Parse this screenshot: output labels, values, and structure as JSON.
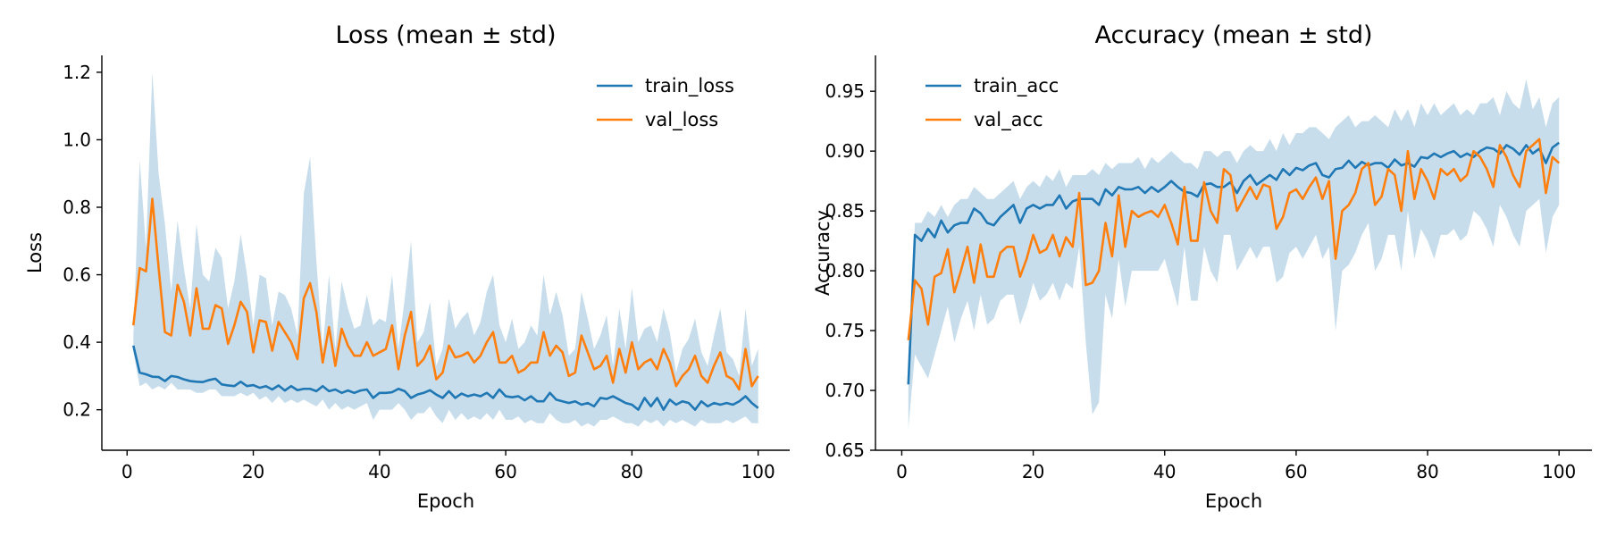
{
  "chart_data": [
    {
      "type": "line",
      "title": "Loss (mean ± std)",
      "xlabel": "Epoch",
      "ylabel": "Loss",
      "xlim": [
        -4,
        105
      ],
      "ylim": [
        0.08,
        1.25
      ],
      "xticks": [
        0,
        20,
        40,
        60,
        80,
        100
      ],
      "yticks": [
        0.2,
        0.4,
        0.6,
        0.8,
        1.0,
        1.2
      ],
      "ytick_labels": [
        "0.2",
        "0.4",
        "0.6",
        "0.8",
        "1.0",
        "1.2"
      ],
      "grid": false,
      "legend": "top-right",
      "band_color": "#1f77b4",
      "x": [
        1,
        2,
        3,
        4,
        5,
        6,
        7,
        8,
        9,
        10,
        11,
        12,
        13,
        14,
        15,
        16,
        17,
        18,
        19,
        20,
        21,
        22,
        23,
        24,
        25,
        26,
        27,
        28,
        29,
        30,
        31,
        32,
        33,
        34,
        35,
        36,
        37,
        38,
        39,
        40,
        41,
        42,
        43,
        44,
        45,
        46,
        47,
        48,
        49,
        50,
        51,
        52,
        53,
        54,
        55,
        56,
        57,
        58,
        59,
        60,
        61,
        62,
        63,
        64,
        65,
        66,
        67,
        68,
        69,
        70,
        71,
        72,
        73,
        74,
        75,
        76,
        77,
        78,
        79,
        80,
        81,
        82,
        83,
        84,
        85,
        86,
        87,
        88,
        89,
        90,
        91,
        92,
        93,
        94,
        95,
        96,
        97,
        98,
        99,
        100
      ],
      "series": [
        {
          "name": "train_loss",
          "color": "#1f77b4",
          "values": [
            0.39,
            0.31,
            0.305,
            0.298,
            0.297,
            0.285,
            0.3,
            0.297,
            0.29,
            0.285,
            0.283,
            0.282,
            0.288,
            0.292,
            0.275,
            0.272,
            0.27,
            0.283,
            0.27,
            0.273,
            0.265,
            0.27,
            0.26,
            0.272,
            0.257,
            0.27,
            0.258,
            0.262,
            0.262,
            0.255,
            0.27,
            0.255,
            0.26,
            0.25,
            0.257,
            0.25,
            0.257,
            0.26,
            0.235,
            0.25,
            0.25,
            0.252,
            0.262,
            0.255,
            0.235,
            0.245,
            0.25,
            0.258,
            0.245,
            0.235,
            0.255,
            0.235,
            0.248,
            0.24,
            0.245,
            0.24,
            0.25,
            0.235,
            0.26,
            0.24,
            0.237,
            0.24,
            0.228,
            0.24,
            0.225,
            0.225,
            0.25,
            0.23,
            0.225,
            0.22,
            0.225,
            0.215,
            0.22,
            0.21,
            0.235,
            0.232,
            0.24,
            0.23,
            0.22,
            0.215,
            0.2,
            0.235,
            0.21,
            0.235,
            0.2,
            0.23,
            0.215,
            0.225,
            0.22,
            0.2,
            0.225,
            0.21,
            0.22,
            0.215,
            0.22,
            0.215,
            0.225,
            0.24,
            0.22,
            0.205
          ]
        },
        {
          "name": "val_loss",
          "color": "#ff7f0e",
          "values": [
            0.45,
            0.62,
            0.61,
            0.825,
            0.62,
            0.43,
            0.42,
            0.57,
            0.52,
            0.42,
            0.56,
            0.44,
            0.44,
            0.51,
            0.5,
            0.395,
            0.45,
            0.52,
            0.49,
            0.37,
            0.465,
            0.46,
            0.375,
            0.46,
            0.43,
            0.4,
            0.35,
            0.53,
            0.575,
            0.49,
            0.34,
            0.445,
            0.33,
            0.44,
            0.39,
            0.36,
            0.36,
            0.4,
            0.36,
            0.37,
            0.38,
            0.45,
            0.32,
            0.42,
            0.49,
            0.33,
            0.35,
            0.39,
            0.29,
            0.31,
            0.39,
            0.355,
            0.36,
            0.37,
            0.34,
            0.36,
            0.4,
            0.43,
            0.34,
            0.34,
            0.36,
            0.31,
            0.32,
            0.34,
            0.34,
            0.43,
            0.36,
            0.39,
            0.37,
            0.3,
            0.31,
            0.42,
            0.37,
            0.32,
            0.33,
            0.36,
            0.28,
            0.38,
            0.31,
            0.4,
            0.32,
            0.34,
            0.35,
            0.32,
            0.38,
            0.34,
            0.27,
            0.3,
            0.32,
            0.36,
            0.3,
            0.28,
            0.33,
            0.37,
            0.3,
            0.29,
            0.26,
            0.38,
            0.27,
            0.3
          ]
        }
      ],
      "band": {
        "upper": [
          0.42,
          0.94,
          0.68,
          1.2,
          0.9,
          0.75,
          0.55,
          0.76,
          0.62,
          0.5,
          0.75,
          0.6,
          0.58,
          0.68,
          0.65,
          0.5,
          0.58,
          0.72,
          0.6,
          0.45,
          0.6,
          0.59,
          0.45,
          0.55,
          0.54,
          0.5,
          0.42,
          0.84,
          0.95,
          0.64,
          0.38,
          0.6,
          0.38,
          0.58,
          0.5,
          0.44,
          0.45,
          0.54,
          0.45,
          0.47,
          0.46,
          0.6,
          0.38,
          0.53,
          0.7,
          0.4,
          0.43,
          0.52,
          0.33,
          0.38,
          0.53,
          0.44,
          0.47,
          0.49,
          0.42,
          0.46,
          0.55,
          0.6,
          0.45,
          0.4,
          0.47,
          0.38,
          0.4,
          0.45,
          0.42,
          0.6,
          0.48,
          0.55,
          0.48,
          0.36,
          0.38,
          0.55,
          0.47,
          0.38,
          0.42,
          0.48,
          0.33,
          0.5,
          0.38,
          0.56,
          0.4,
          0.44,
          0.45,
          0.4,
          0.5,
          0.43,
          0.31,
          0.38,
          0.41,
          0.47,
          0.37,
          0.33,
          0.42,
          0.5,
          0.37,
          0.35,
          0.3,
          0.5,
          0.33,
          0.38
        ],
        "lower": [
          0.37,
          0.27,
          0.28,
          0.26,
          0.27,
          0.26,
          0.28,
          0.26,
          0.26,
          0.26,
          0.25,
          0.25,
          0.26,
          0.26,
          0.24,
          0.24,
          0.24,
          0.25,
          0.24,
          0.25,
          0.23,
          0.24,
          0.22,
          0.24,
          0.22,
          0.23,
          0.22,
          0.23,
          0.22,
          0.21,
          0.23,
          0.2,
          0.22,
          0.2,
          0.21,
          0.2,
          0.21,
          0.22,
          0.17,
          0.2,
          0.2,
          0.2,
          0.22,
          0.2,
          0.17,
          0.19,
          0.19,
          0.21,
          0.18,
          0.16,
          0.2,
          0.17,
          0.19,
          0.17,
          0.18,
          0.17,
          0.19,
          0.17,
          0.2,
          0.17,
          0.17,
          0.18,
          0.16,
          0.17,
          0.16,
          0.16,
          0.19,
          0.17,
          0.16,
          0.16,
          0.17,
          0.15,
          0.16,
          0.15,
          0.17,
          0.17,
          0.18,
          0.17,
          0.16,
          0.16,
          0.15,
          0.17,
          0.16,
          0.17,
          0.15,
          0.17,
          0.16,
          0.17,
          0.16,
          0.15,
          0.17,
          0.16,
          0.16,
          0.16,
          0.17,
          0.16,
          0.17,
          0.18,
          0.16,
          0.16
        ]
      }
    },
    {
      "type": "line",
      "title": "Accuracy (mean ± std)",
      "xlabel": "Epoch",
      "ylabel": "Accuracy",
      "xlim": [
        -4,
        105
      ],
      "ylim": [
        0.65,
        0.98
      ],
      "xticks": [
        0,
        20,
        40,
        60,
        80,
        100
      ],
      "yticks": [
        0.65,
        0.7,
        0.75,
        0.8,
        0.85,
        0.9,
        0.95
      ],
      "ytick_labels": [
        "0.65",
        "0.70",
        "0.75",
        "0.80",
        "0.85",
        "0.90",
        "0.95"
      ],
      "grid": false,
      "legend": "top-left",
      "band_color": "#1f77b4",
      "x": [
        1,
        2,
        3,
        4,
        5,
        6,
        7,
        8,
        9,
        10,
        11,
        12,
        13,
        14,
        15,
        16,
        17,
        18,
        19,
        20,
        21,
        22,
        23,
        24,
        25,
        26,
        27,
        28,
        29,
        30,
        31,
        32,
        33,
        34,
        35,
        36,
        37,
        38,
        39,
        40,
        41,
        42,
        43,
        44,
        45,
        46,
        47,
        48,
        49,
        50,
        51,
        52,
        53,
        54,
        55,
        56,
        57,
        58,
        59,
        60,
        61,
        62,
        63,
        64,
        65,
        66,
        67,
        68,
        69,
        70,
        71,
        72,
        73,
        74,
        75,
        76,
        77,
        78,
        79,
        80,
        81,
        82,
        83,
        84,
        85,
        86,
        87,
        88,
        89,
        90,
        91,
        92,
        93,
        94,
        95,
        96,
        97,
        98,
        99,
        100
      ],
      "series": [
        {
          "name": "train_acc",
          "color": "#1f77b4",
          "values": [
            0.705,
            0.83,
            0.825,
            0.835,
            0.828,
            0.842,
            0.832,
            0.838,
            0.84,
            0.84,
            0.852,
            0.848,
            0.84,
            0.838,
            0.845,
            0.85,
            0.855,
            0.84,
            0.852,
            0.855,
            0.852,
            0.855,
            0.855,
            0.863,
            0.852,
            0.858,
            0.86,
            0.86,
            0.86,
            0.855,
            0.868,
            0.863,
            0.87,
            0.868,
            0.868,
            0.87,
            0.865,
            0.87,
            0.866,
            0.87,
            0.875,
            0.87,
            0.866,
            0.865,
            0.862,
            0.872,
            0.873,
            0.87,
            0.87,
            0.874,
            0.865,
            0.875,
            0.88,
            0.872,
            0.876,
            0.88,
            0.876,
            0.885,
            0.88,
            0.886,
            0.884,
            0.888,
            0.89,
            0.88,
            0.878,
            0.885,
            0.886,
            0.892,
            0.886,
            0.891,
            0.888,
            0.89,
            0.89,
            0.886,
            0.893,
            0.888,
            0.89,
            0.887,
            0.895,
            0.894,
            0.898,
            0.895,
            0.898,
            0.9,
            0.895,
            0.898,
            0.895,
            0.9,
            0.903,
            0.902,
            0.898,
            0.905,
            0.902,
            0.897,
            0.905,
            0.898,
            0.902,
            0.89,
            0.903,
            0.907
          ]
        },
        {
          "name": "val_acc",
          "color": "#ff7f0e",
          "values": [
            0.742,
            0.792,
            0.785,
            0.755,
            0.795,
            0.798,
            0.818,
            0.782,
            0.8,
            0.82,
            0.79,
            0.822,
            0.795,
            0.795,
            0.815,
            0.82,
            0.82,
            0.795,
            0.81,
            0.83,
            0.815,
            0.818,
            0.83,
            0.812,
            0.828,
            0.82,
            0.865,
            0.788,
            0.79,
            0.8,
            0.84,
            0.812,
            0.863,
            0.82,
            0.85,
            0.845,
            0.848,
            0.85,
            0.845,
            0.855,
            0.84,
            0.822,
            0.87,
            0.825,
            0.825,
            0.874,
            0.85,
            0.84,
            0.885,
            0.88,
            0.85,
            0.86,
            0.87,
            0.86,
            0.872,
            0.87,
            0.835,
            0.845,
            0.865,
            0.868,
            0.86,
            0.87,
            0.878,
            0.86,
            0.875,
            0.81,
            0.85,
            0.855,
            0.865,
            0.885,
            0.89,
            0.855,
            0.862,
            0.885,
            0.88,
            0.85,
            0.9,
            0.86,
            0.885,
            0.875,
            0.86,
            0.885,
            0.88,
            0.885,
            0.875,
            0.88,
            0.9,
            0.895,
            0.885,
            0.87,
            0.905,
            0.895,
            0.88,
            0.87,
            0.9,
            0.905,
            0.91,
            0.865,
            0.895,
            0.89
          ]
        }
      ],
      "band": {
        "upper": [
          0.73,
          0.84,
          0.84,
          0.85,
          0.845,
          0.855,
          0.845,
          0.855,
          0.86,
          0.86,
          0.87,
          0.865,
          0.86,
          0.86,
          0.865,
          0.87,
          0.875,
          0.86,
          0.87,
          0.875,
          0.87,
          0.88,
          0.875,
          0.885,
          0.87,
          0.88,
          0.88,
          0.88,
          0.885,
          0.88,
          0.89,
          0.885,
          0.89,
          0.89,
          0.89,
          0.895,
          0.885,
          0.895,
          0.89,
          0.895,
          0.9,
          0.895,
          0.89,
          0.89,
          0.885,
          0.9,
          0.9,
          0.895,
          0.9,
          0.9,
          0.89,
          0.9,
          0.905,
          0.9,
          0.9,
          0.91,
          0.9,
          0.915,
          0.905,
          0.915,
          0.915,
          0.92,
          0.92,
          0.915,
          0.91,
          0.92,
          0.925,
          0.93,
          0.92,
          0.925,
          0.925,
          0.93,
          0.925,
          0.92,
          0.935,
          0.925,
          0.935,
          0.92,
          0.94,
          0.93,
          0.94,
          0.93,
          0.935,
          0.94,
          0.93,
          0.935,
          0.93,
          0.94,
          0.94,
          0.945,
          0.93,
          0.95,
          0.94,
          0.935,
          0.96,
          0.935,
          0.945,
          0.92,
          0.94,
          0.945
        ],
        "lower": [
          0.668,
          0.73,
          0.72,
          0.71,
          0.73,
          0.75,
          0.77,
          0.74,
          0.76,
          0.775,
          0.75,
          0.78,
          0.755,
          0.76,
          0.775,
          0.78,
          0.78,
          0.755,
          0.77,
          0.79,
          0.775,
          0.78,
          0.79,
          0.775,
          0.79,
          0.785,
          0.82,
          0.74,
          0.68,
          0.69,
          0.78,
          0.76,
          0.81,
          0.77,
          0.8,
          0.8,
          0.8,
          0.8,
          0.8,
          0.81,
          0.79,
          0.77,
          0.82,
          0.775,
          0.775,
          0.82,
          0.8,
          0.79,
          0.83,
          0.83,
          0.8,
          0.81,
          0.82,
          0.81,
          0.82,
          0.82,
          0.79,
          0.795,
          0.815,
          0.82,
          0.81,
          0.82,
          0.83,
          0.81,
          0.82,
          0.75,
          0.8,
          0.805,
          0.815,
          0.83,
          0.84,
          0.8,
          0.81,
          0.83,
          0.83,
          0.8,
          0.85,
          0.81,
          0.835,
          0.825,
          0.81,
          0.83,
          0.83,
          0.835,
          0.825,
          0.83,
          0.85,
          0.845,
          0.835,
          0.82,
          0.855,
          0.845,
          0.83,
          0.82,
          0.85,
          0.855,
          0.86,
          0.815,
          0.845,
          0.855
        ]
      }
    }
  ]
}
